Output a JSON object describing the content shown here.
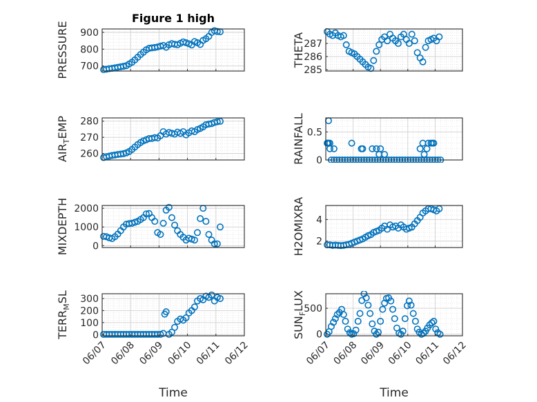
{
  "figure": {
    "title": "Figure 1 high",
    "xlabel": "Time"
  },
  "colors": {
    "marker": "#0072BD",
    "grid": "#d9d9d9",
    "axis": "#262626"
  },
  "xaxis": {
    "ticks": [
      "06/07",
      "06/08",
      "06/09",
      "06/10",
      "06/11",
      "06/12"
    ],
    "tick_values": [
      0,
      1,
      2,
      3,
      4,
      5
    ],
    "lim": [
      0,
      5
    ]
  },
  "chart_data": [
    {
      "type": "scatter",
      "ylabel": "PRESSURE",
      "title": "Figure 1 high",
      "ylim": [
        670,
        920
      ],
      "yticks": [
        700,
        800,
        900
      ],
      "x": [
        0.05,
        0.15,
        0.25,
        0.35,
        0.45,
        0.55,
        0.65,
        0.75,
        0.85,
        0.95,
        1.05,
        1.15,
        1.25,
        1.35,
        1.45,
        1.55,
        1.65,
        1.75,
        1.85,
        1.95,
        2.05,
        2.15,
        2.25,
        2.35,
        2.45,
        2.55,
        2.65,
        2.75,
        2.85,
        2.95,
        3.05,
        3.15,
        3.25,
        3.35,
        3.45,
        3.55,
        3.65,
        3.75,
        3.85,
        3.95,
        4.05,
        4.15
      ],
      "y": [
        678,
        681,
        684,
        686,
        689,
        692,
        695,
        698,
        702,
        712,
        722,
        736,
        752,
        768,
        782,
        796,
        805,
        808,
        810,
        813,
        818,
        822,
        811,
        826,
        833,
        829,
        826,
        835,
        843,
        838,
        832,
        825,
        845,
        838,
        828,
        852,
        862,
        876,
        899,
        910,
        905,
        903
      ]
    },
    {
      "type": "scatter",
      "ylabel": "THETA",
      "ylim": [
        284.9,
        288.1
      ],
      "yticks": [
        285,
        286,
        287
      ],
      "x": [
        0.05,
        0.15,
        0.25,
        0.35,
        0.45,
        0.55,
        0.65,
        0.75,
        0.85,
        0.95,
        1.05,
        1.15,
        1.25,
        1.35,
        1.45,
        1.55,
        1.65,
        1.75,
        1.85,
        1.95,
        2.05,
        2.15,
        2.25,
        2.35,
        2.45,
        2.55,
        2.65,
        2.75,
        2.85,
        2.95,
        3.05,
        3.15,
        3.25,
        3.35,
        3.45,
        3.55,
        3.65,
        3.75,
        3.85,
        3.95,
        4.05,
        4.15
      ],
      "y": [
        287.9,
        287.7,
        287.6,
        287.8,
        287.6,
        287.5,
        287.6,
        286.9,
        286.4,
        286.3,
        286.2,
        286.0,
        285.8,
        285.6,
        285.4,
        285.2,
        285.1,
        285.7,
        286.4,
        286.9,
        287.3,
        287.5,
        287.2,
        287.7,
        287.4,
        287.2,
        287.0,
        287.5,
        287.7,
        287.3,
        287.0,
        287.7,
        287.2,
        286.3,
        285.9,
        285.6,
        286.7,
        287.2,
        287.3,
        287.4,
        287.2,
        287.5
      ]
    },
    {
      "type": "scatter",
      "ylabel": "AIR_TEMP",
      "ylim": [
        256,
        282
      ],
      "yticks": [
        260,
        270,
        280
      ],
      "x": [
        0.05,
        0.15,
        0.25,
        0.35,
        0.45,
        0.55,
        0.65,
        0.75,
        0.85,
        0.95,
        1.05,
        1.15,
        1.25,
        1.35,
        1.45,
        1.55,
        1.65,
        1.75,
        1.85,
        1.95,
        2.05,
        2.15,
        2.25,
        2.35,
        2.45,
        2.55,
        2.65,
        2.75,
        2.85,
        2.95,
        3.05,
        3.15,
        3.25,
        3.35,
        3.45,
        3.55,
        3.65,
        3.75,
        3.85,
        3.95,
        4.05,
        4.15
      ],
      "y": [
        257.5,
        258,
        258.4,
        258.8,
        259.1,
        259.4,
        259.6,
        259.9,
        260.4,
        261.2,
        262.5,
        264,
        265.5,
        266.8,
        267.8,
        268.5,
        269.2,
        269.3,
        269.8,
        269.6,
        271,
        273.5,
        272,
        273,
        272.5,
        272,
        273.2,
        272.4,
        273.5,
        271.5,
        272.8,
        274,
        273.5,
        274.8,
        275.5,
        276.5,
        277.8,
        278.2,
        278.5,
        279.2,
        279.6,
        279.9
      ]
    },
    {
      "type": "scatter",
      "ylabel": "RAINFALL",
      "ylim": [
        0,
        0.75
      ],
      "yticks": [
        0,
        0.5
      ],
      "x": [
        0.05,
        0.1,
        0.15,
        0.2,
        0.3,
        0.4,
        0.5,
        0.6,
        0.7,
        0.8,
        0.9,
        1.0,
        1.1,
        1.2,
        1.3,
        1.4,
        1.5,
        1.6,
        1.7,
        1.8,
        1.9,
        2.0,
        2.1,
        2.2,
        2.3,
        2.4,
        2.5,
        2.6,
        2.7,
        2.8,
        2.9,
        3.0,
        3.1,
        3.2,
        3.3,
        3.4,
        3.5,
        3.6,
        3.7,
        3.8,
        3.9,
        4.0,
        4.1,
        4.2,
        0.08,
        0.1,
        0.15,
        0.3,
        0.95,
        1.3,
        1.35,
        1.7,
        1.85,
        1.95,
        2.0,
        2.15,
        3.45,
        3.55,
        3.6,
        3.7,
        3.75,
        3.85,
        3.9,
        3.95
      ],
      "y": [
        0.3,
        0.7,
        0.2,
        0,
        0,
        0,
        0,
        0,
        0,
        0,
        0,
        0,
        0,
        0,
        0,
        0,
        0,
        0,
        0,
        0,
        0,
        0,
        0,
        0,
        0,
        0,
        0,
        0,
        0,
        0,
        0,
        0,
        0,
        0,
        0,
        0,
        0,
        0,
        0,
        0,
        0,
        0,
        0,
        0,
        0.3,
        0.3,
        0.3,
        0.2,
        0.3,
        0.2,
        0.2,
        0.2,
        0.2,
        0.1,
        0.2,
        0.1,
        0.2,
        0.3,
        0.1,
        0.2,
        0.3,
        0.3,
        0.3,
        0.3
      ]
    },
    {
      "type": "scatter",
      "ylabel": "MIXDEPTH",
      "ylim": [
        -100,
        2150
      ],
      "yticks": [
        0,
        1000,
        2000
      ],
      "x": [
        0.05,
        0.15,
        0.25,
        0.35,
        0.45,
        0.55,
        0.65,
        0.75,
        0.85,
        0.95,
        1.05,
        1.15,
        1.25,
        1.35,
        1.45,
        1.55,
        1.65,
        1.75,
        1.85,
        1.95,
        2.05,
        2.15,
        2.25,
        2.35,
        2.45,
        2.55,
        2.65,
        2.75,
        2.85,
        2.95,
        3.05,
        3.15,
        3.25,
        3.35,
        3.45,
        3.55,
        3.65,
        3.75,
        3.85,
        3.95,
        4.05,
        4.15
      ],
      "y": [
        500,
        480,
        420,
        380,
        480,
        620,
        800,
        1000,
        1150,
        1180,
        1200,
        1250,
        1300,
        1400,
        1500,
        1700,
        1720,
        1500,
        1300,
        700,
        600,
        1200,
        1900,
        2050,
        1500,
        1100,
        800,
        600,
        450,
        300,
        400,
        350,
        300,
        700,
        1450,
        2000,
        1300,
        600,
        300,
        100,
        100,
        1000
      ]
    },
    {
      "type": "scatter",
      "ylabel": "H2OMIXRA",
      "ylim": [
        1.4,
        5.3
      ],
      "yticks": [
        2,
        4
      ],
      "x": [
        0.05,
        0.15,
        0.25,
        0.35,
        0.45,
        0.55,
        0.65,
        0.75,
        0.85,
        0.95,
        1.05,
        1.15,
        1.25,
        1.35,
        1.45,
        1.55,
        1.65,
        1.75,
        1.85,
        1.95,
        2.05,
        2.15,
        2.25,
        2.35,
        2.45,
        2.55,
        2.65,
        2.75,
        2.85,
        2.95,
        3.05,
        3.15,
        3.25,
        3.35,
        3.45,
        3.55,
        3.65,
        3.75,
        3.85,
        3.95,
        4.05,
        4.15
      ],
      "y": [
        1.65,
        1.65,
        1.6,
        1.62,
        1.6,
        1.58,
        1.6,
        1.65,
        1.7,
        1.8,
        1.9,
        2.0,
        2.1,
        2.2,
        2.35,
        2.5,
        2.6,
        2.8,
        2.9,
        3.0,
        3.2,
        3.4,
        3.1,
        3.5,
        3.3,
        3.4,
        3.2,
        3.5,
        3.3,
        3.1,
        3.2,
        3.3,
        3.6,
        3.9,
        4.2,
        4.6,
        4.8,
        5.0,
        5.0,
        4.9,
        4.8,
        5.0
      ]
    },
    {
      "type": "scatter",
      "ylabel": "TERR_MSL",
      "ylim": [
        -10,
        340
      ],
      "yticks": [
        0,
        100,
        200,
        300
      ],
      "x": [
        0.05,
        0.15,
        0.25,
        0.35,
        0.45,
        0.55,
        0.65,
        0.75,
        0.85,
        0.95,
        1.05,
        1.15,
        1.25,
        1.35,
        1.45,
        1.55,
        1.65,
        1.75,
        1.85,
        1.95,
        2.05,
        2.15,
        2.2,
        2.25,
        2.35,
        2.45,
        2.55,
        2.65,
        2.75,
        2.85,
        2.95,
        3.05,
        3.15,
        3.25,
        3.35,
        3.45,
        3.55,
        3.65,
        3.75,
        3.85,
        3.95,
        4.05,
        4.15
      ],
      "y": [
        2,
        2,
        2,
        2,
        2,
        2,
        2,
        2,
        2,
        2,
        2,
        2,
        2,
        2,
        2,
        2,
        2,
        2,
        2,
        2,
        2,
        10,
        170,
        190,
        2,
        20,
        60,
        110,
        130,
        120,
        140,
        180,
        200,
        230,
        280,
        300,
        290,
        320,
        310,
        330,
        280,
        310,
        300
      ]
    },
    {
      "type": "scatter",
      "ylabel": "SUN_FLUX",
      "ylim": [
        -30,
        780
      ],
      "yticks": [
        0,
        500
      ],
      "x": [
        0.05,
        0.12,
        0.2,
        0.28,
        0.35,
        0.42,
        0.5,
        0.58,
        0.65,
        0.72,
        0.8,
        0.88,
        0.95,
        1.02,
        1.1,
        1.18,
        1.25,
        1.32,
        1.4,
        1.48,
        1.55,
        1.62,
        1.7,
        1.78,
        1.85,
        1.92,
        2.0,
        2.08,
        2.15,
        2.22,
        2.3,
        2.38,
        2.45,
        2.52,
        2.6,
        2.68,
        2.75,
        2.82,
        2.9,
        2.98,
        3.05,
        3.12,
        3.2,
        3.28,
        3.35,
        3.42,
        3.5,
        3.58,
        3.65,
        3.72,
        3.8,
        3.88,
        3.95,
        4.02,
        4.1,
        4.18
      ],
      "y": [
        0,
        50,
        150,
        230,
        300,
        380,
        420,
        480,
        380,
        250,
        100,
        30,
        0,
        10,
        80,
        250,
        400,
        650,
        780,
        700,
        560,
        400,
        200,
        60,
        0,
        40,
        250,
        480,
        600,
        690,
        700,
        640,
        480,
        300,
        120,
        20,
        0,
        60,
        300,
        550,
        640,
        560,
        400,
        250,
        100,
        40,
        0,
        20,
        60,
        120,
        180,
        220,
        250,
        100,
        30,
        0
      ]
    }
  ]
}
